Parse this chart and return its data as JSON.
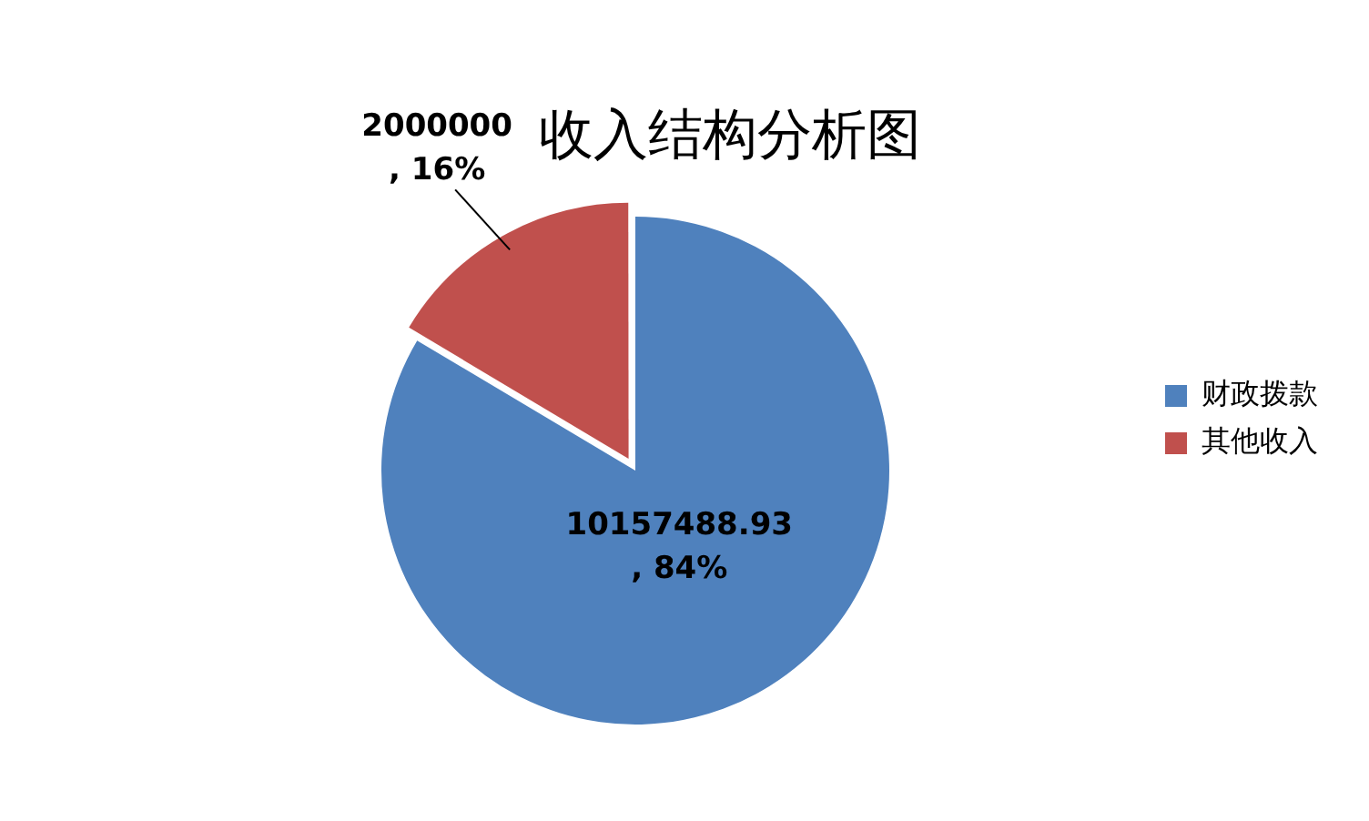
{
  "chart_data": {
    "type": "pie",
    "title": "收入结构分析图",
    "categories": [
      "财政拨款",
      "其他收入"
    ],
    "values": [
      10157488.93,
      2000000
    ],
    "colors": [
      "#4f81bd",
      "#c0504d"
    ],
    "value_labels": [
      "10157488.93, 84%",
      "2000000, 16%"
    ],
    "legend": "right"
  }
}
